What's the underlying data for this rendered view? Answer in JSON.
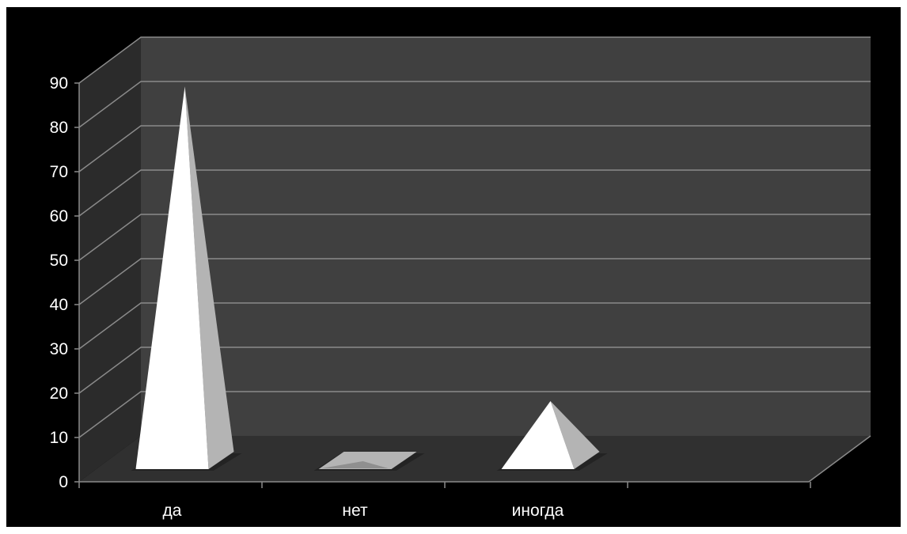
{
  "chart_data": {
    "type": "bar",
    "bar_shape": "3d-pyramid",
    "categories": [
      "да",
      "нет",
      "иногда"
    ],
    "series": [
      {
        "values": [
          86,
          0,
          15
        ]
      }
    ],
    "ylim": [
      0,
      90
    ],
    "yticks": [
      0,
      10,
      20,
      30,
      40,
      50,
      60,
      70,
      80,
      90
    ],
    "ytick_labels": [
      "0",
      "10",
      "20",
      "30",
      "40",
      "50",
      "60",
      "70",
      "80",
      "90"
    ],
    "grid": true,
    "legend": "none",
    "colors": {
      "background": "#000000",
      "back_wall": "#404040",
      "side_wall": "#2b2b2b",
      "floor": "#303030",
      "gridline": "#8a8a8a",
      "pyramid_front": "#ffffff",
      "pyramid_side": "#b4b4b4",
      "text": "#ffffff"
    }
  }
}
